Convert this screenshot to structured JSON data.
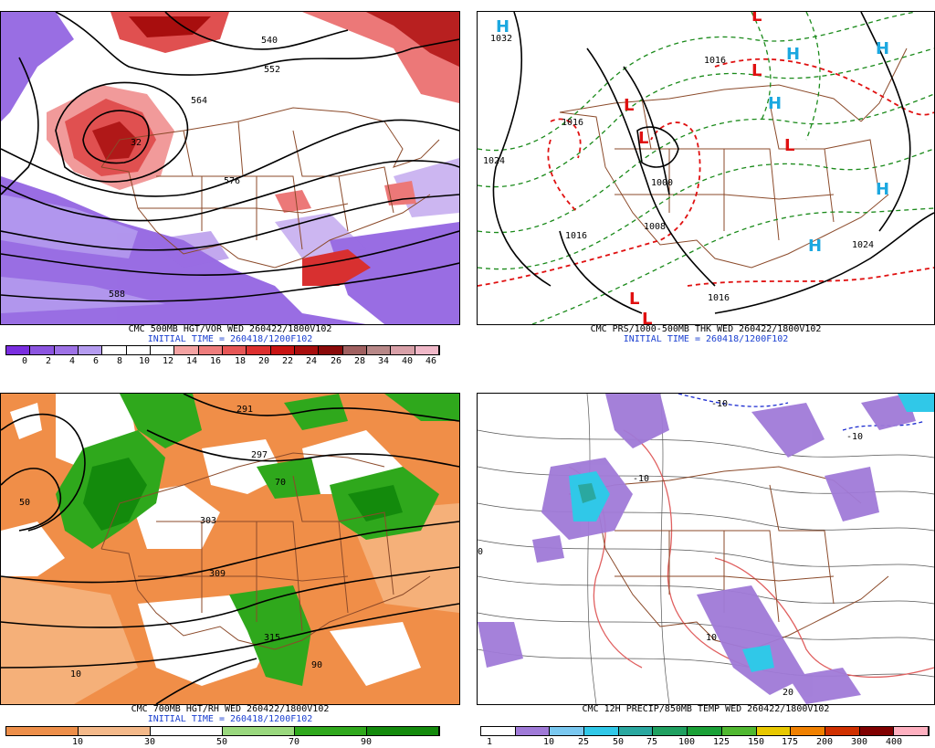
{
  "panels": [
    {
      "title": "CMC 500MB HGT/VOR WED 260422/1800V102",
      "subtitle": "INITIAL TIME = 260418/1200F102",
      "scale": {
        "labels": [
          "0",
          "2",
          "4",
          "6",
          "8",
          "10",
          "12",
          "14",
          "16",
          "18",
          "20",
          "22",
          "24",
          "26",
          "28",
          "34",
          "40",
          "46"
        ],
        "colors": [
          "#7a2ee0",
          "#8c55e0",
          "#9e72e6",
          "#b59cf0",
          "#ffffff",
          "#ffffff",
          "#ffffff",
          "#f4a3a3",
          "#ee7d7d",
          "#e65656",
          "#dd3030",
          "#c81414",
          "#a80e0e",
          "#8a0a0a",
          "#a06060",
          "#b88888",
          "#d8a0a8",
          "#f0b8c8"
        ]
      },
      "contours": [
        "540",
        "552",
        "564",
        "576",
        "588"
      ],
      "vorticity_max": "32"
    },
    {
      "title": "CMC PRS/1000-500MB THK WED 260422/1800V102",
      "subtitle": "INITIAL TIME = 260418/1200F102",
      "isobars": [
        "1032",
        "1016",
        "1024",
        "1000",
        "1008",
        "1016",
        "1016",
        "1024",
        "1016"
      ],
      "highs": [
        "H",
        "H",
        "H",
        "H",
        "H",
        "H"
      ],
      "lows": [
        "L",
        "L",
        "L",
        "L",
        "L",
        "L",
        "L"
      ]
    },
    {
      "title": "CMC 700MB HGT/RH WED 260422/1800V102",
      "subtitle": "INITIAL TIME = 260418/1200F102",
      "scale": {
        "labels": [
          "10",
          "30",
          "50",
          "70",
          "90"
        ],
        "colors": [
          "#ee8f4a",
          "#f4b98a",
          "#ffffff",
          "#9ad87e",
          "#2fa81c",
          "#138a0c"
        ]
      },
      "contours": [
        "291",
        "297",
        "303",
        "309",
        "315"
      ],
      "rh_labels": [
        "10",
        "50",
        "70",
        "90"
      ]
    },
    {
      "title": "CMC 12H PRECIP/850MB TEMP WED 260422/1800V102",
      "subtitle": "",
      "scale": {
        "labels": [
          "1",
          "10",
          "25",
          "50",
          "75",
          "100",
          "125",
          "150",
          "175",
          "200",
          "300",
          "400"
        ],
        "colors": [
          "#ffffff",
          "#a07ad8",
          "#7ac8f0",
          "#30c8e8",
          "#2aa8a0",
          "#1fa060",
          "#1aa036",
          "#50b830",
          "#e8c800",
          "#f08000",
          "#d03000",
          "#800000",
          "#ffb0c0"
        ]
      },
      "temps": [
        "-10",
        "-10",
        "-10",
        "0",
        "10",
        "20"
      ]
    }
  ]
}
